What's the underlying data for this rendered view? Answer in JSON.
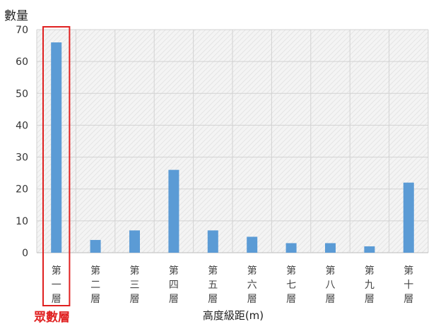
{
  "chart_data": {
    "type": "bar",
    "title": "",
    "ylabel": "數量",
    "xlabel": "高度級距(m)",
    "ylim": [
      0,
      70
    ],
    "yticks": [
      0,
      10,
      20,
      30,
      40,
      50,
      60,
      70
    ],
    "grid": true,
    "categories": [
      "第一層",
      "第二層",
      "第三層",
      "第四層",
      "第五層",
      "第六層",
      "第七層",
      "第八層",
      "第九層",
      "第十層"
    ],
    "series": [
      {
        "values": [
          66,
          4,
          7,
          26,
          7,
          5,
          3,
          3,
          2,
          22
        ]
      }
    ],
    "bar_color": "#5b9bd5",
    "highlight": {
      "category_index": 0,
      "label": "眾數層",
      "color": "#e02020"
    }
  }
}
